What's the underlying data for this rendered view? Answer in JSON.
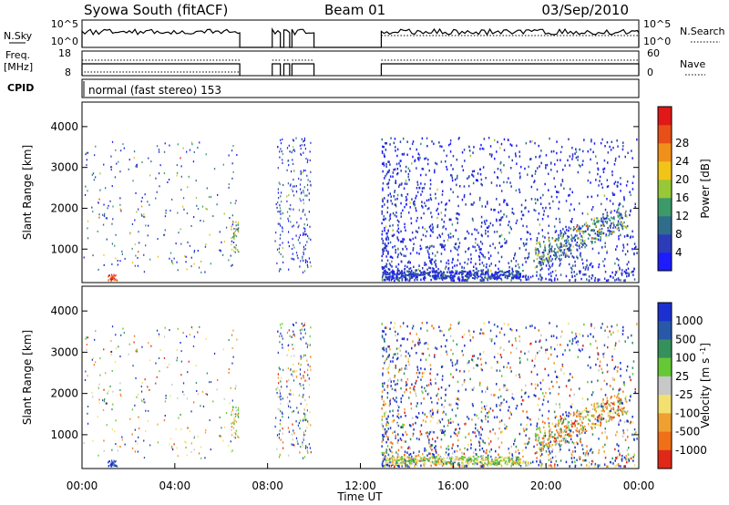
{
  "header": {
    "station": "Syowa South (fitACF)",
    "beam": "Beam 01",
    "date": "03/Sep/2010"
  },
  "labels": {
    "n_sky": "N.Sky",
    "n_search": "N.Search",
    "freq": "Freq.",
    "mhz": "[MHz]",
    "nave": "Nave",
    "cpid": "CPID",
    "cpid_text": "normal (fast stereo) 153",
    "tick_10e5": "10^5",
    "tick_10e0": "10^0",
    "freq_hi": "18",
    "freq_lo": "8",
    "nave_hi": "60",
    "nave_lo": "0"
  },
  "chart_data": [
    {
      "type": "heatmap",
      "name": "power",
      "xlabel": "",
      "ylabel": "Slant Range [km]",
      "xlim": [
        0,
        24
      ],
      "ylim": [
        180,
        4600
      ],
      "yticks": [
        "1000",
        "2000",
        "3000",
        "4000"
      ],
      "colorbar_label": "Power [dB]",
      "colorbar_ticks": [
        "4",
        "8",
        "12",
        "16",
        "20",
        "24",
        "28"
      ],
      "colorbar_colors": [
        "#1c1cff",
        "#2c3cb8",
        "#2f6e8a",
        "#3c9a6a",
        "#98c838",
        "#f2c418",
        "#f0901a",
        "#e85018",
        "#e01818"
      ]
    },
    {
      "type": "heatmap",
      "name": "velocity",
      "xlabel": "Time UT",
      "ylabel": "Slant Range [km]",
      "xlim": [
        0,
        24
      ],
      "ylim": [
        180,
        4600
      ],
      "xticks": [
        "00:00",
        "04:00",
        "08:00",
        "12:00",
        "16:00",
        "20:00",
        "00:00"
      ],
      "yticks": [
        "1000",
        "2000",
        "3000",
        "4000"
      ],
      "colorbar_label": "Velocity [m s-1]",
      "colorbar_ticks": [
        "1000",
        "500",
        "100",
        "25",
        "-25",
        "-100",
        "-500",
        "-1000"
      ],
      "colorbar_colors": [
        "#1c30d0",
        "#2858a8",
        "#36905c",
        "#66c836",
        "#c8c8c8",
        "#f2e070",
        "#f0a030",
        "#f07018",
        "#e02818"
      ]
    }
  ]
}
